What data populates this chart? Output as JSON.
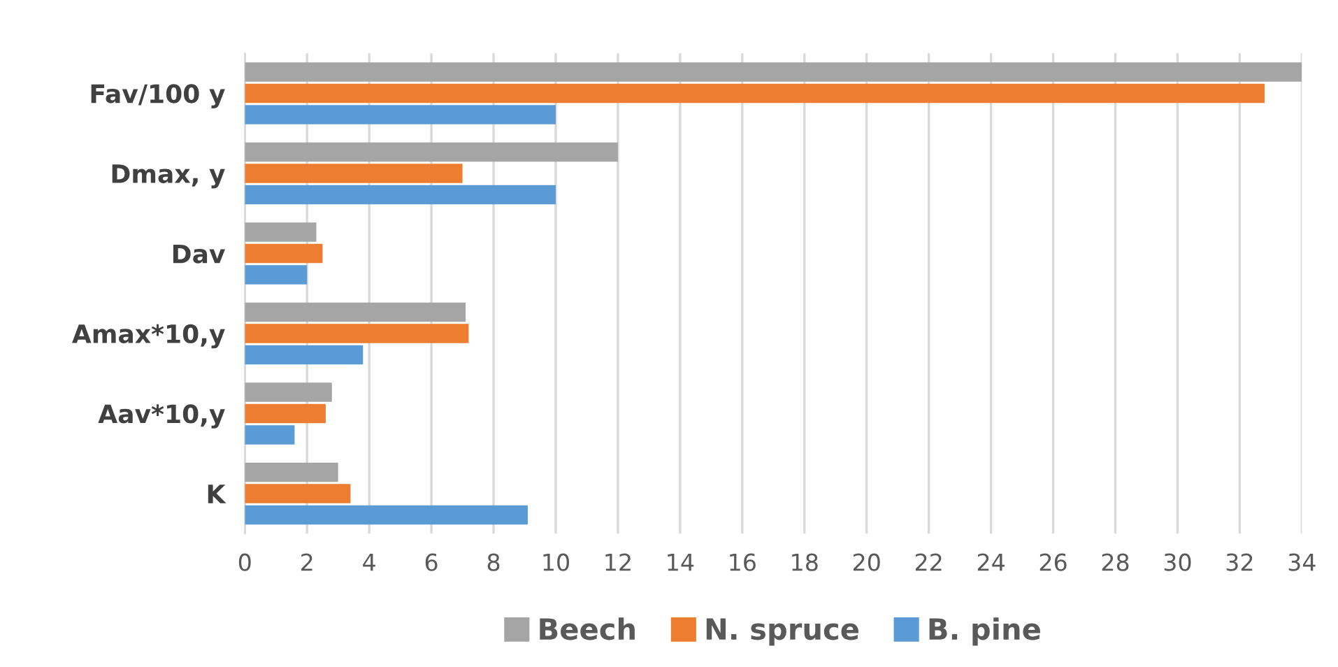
{
  "chart_data": {
    "type": "bar",
    "orientation": "horizontal",
    "categories": [
      "Fav/100 y",
      "Dmax, y",
      "Dav",
      "Amax*10,y",
      "Aav*10,y",
      "K"
    ],
    "series": [
      {
        "name": "Beech",
        "color": "#a5a5a5",
        "values": [
          34,
          12,
          2.3,
          7.1,
          2.8,
          3.0
        ]
      },
      {
        "name": "N. spruce",
        "color": "#ed7d31",
        "values": [
          32.8,
          7.0,
          2.5,
          7.2,
          2.6,
          3.4
        ]
      },
      {
        "name": "B. pine",
        "color": "#5b9bd5",
        "values": [
          10,
          10,
          2.0,
          3.8,
          1.6,
          9.1
        ]
      }
    ],
    "xlim": [
      0,
      34
    ],
    "xticks": [
      0,
      2,
      4,
      6,
      8,
      10,
      12,
      14,
      16,
      18,
      20,
      22,
      24,
      26,
      28,
      30,
      32,
      34
    ],
    "grid": "x",
    "legend": "bottom"
  }
}
